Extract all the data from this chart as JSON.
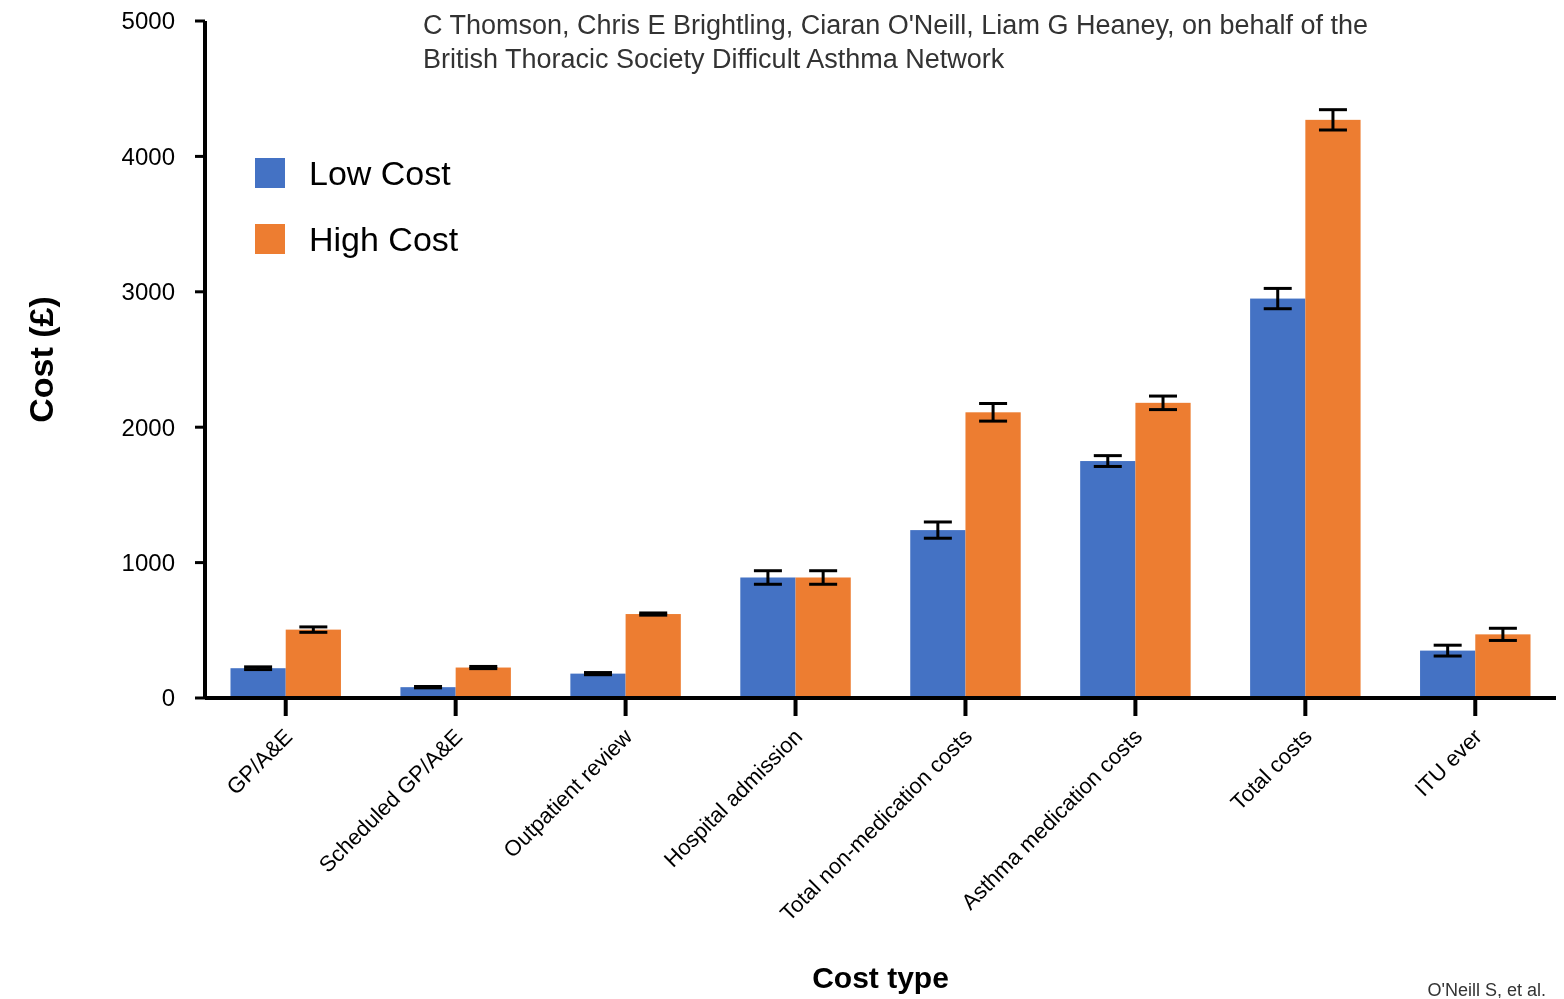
{
  "chart_data": {
    "type": "bar",
    "xlabel": "Cost type",
    "ylabel": "Cost (£)",
    "categories": [
      "GP/A&E",
      "Scheduled GP/A&E",
      "Outpatient review",
      "Hospital admission",
      "Total non-medication costs",
      "Asthma medication costs",
      "Total costs",
      "ITU ever"
    ],
    "series": [
      {
        "name": "Low Cost",
        "color": "#4472c4",
        "values": [
          220,
          80,
          180,
          890,
          1240,
          1750,
          2950,
          350
        ],
        "errors": [
          10,
          5,
          8,
          50,
          60,
          40,
          75,
          40
        ]
      },
      {
        "name": "High Cost",
        "color": "#ed7d31",
        "values": [
          505,
          225,
          620,
          890,
          2110,
          2180,
          4270,
          470
        ],
        "errors": [
          20,
          8,
          8,
          50,
          65,
          50,
          75,
          45
        ]
      }
    ],
    "ylim": [
      0,
      5000
    ],
    "yticks": [
      0,
      1000,
      2000,
      3000,
      4000,
      5000
    ],
    "grid": false,
    "legend": "top left",
    "annotations": [
      "C Thomson, Chris E Brightling, Ciaran O'Neill, Liam G Heaney, on behalf of the",
      "British Thoracic Society Difficult Asthma Network",
      "O'Neill S, et al."
    ]
  }
}
